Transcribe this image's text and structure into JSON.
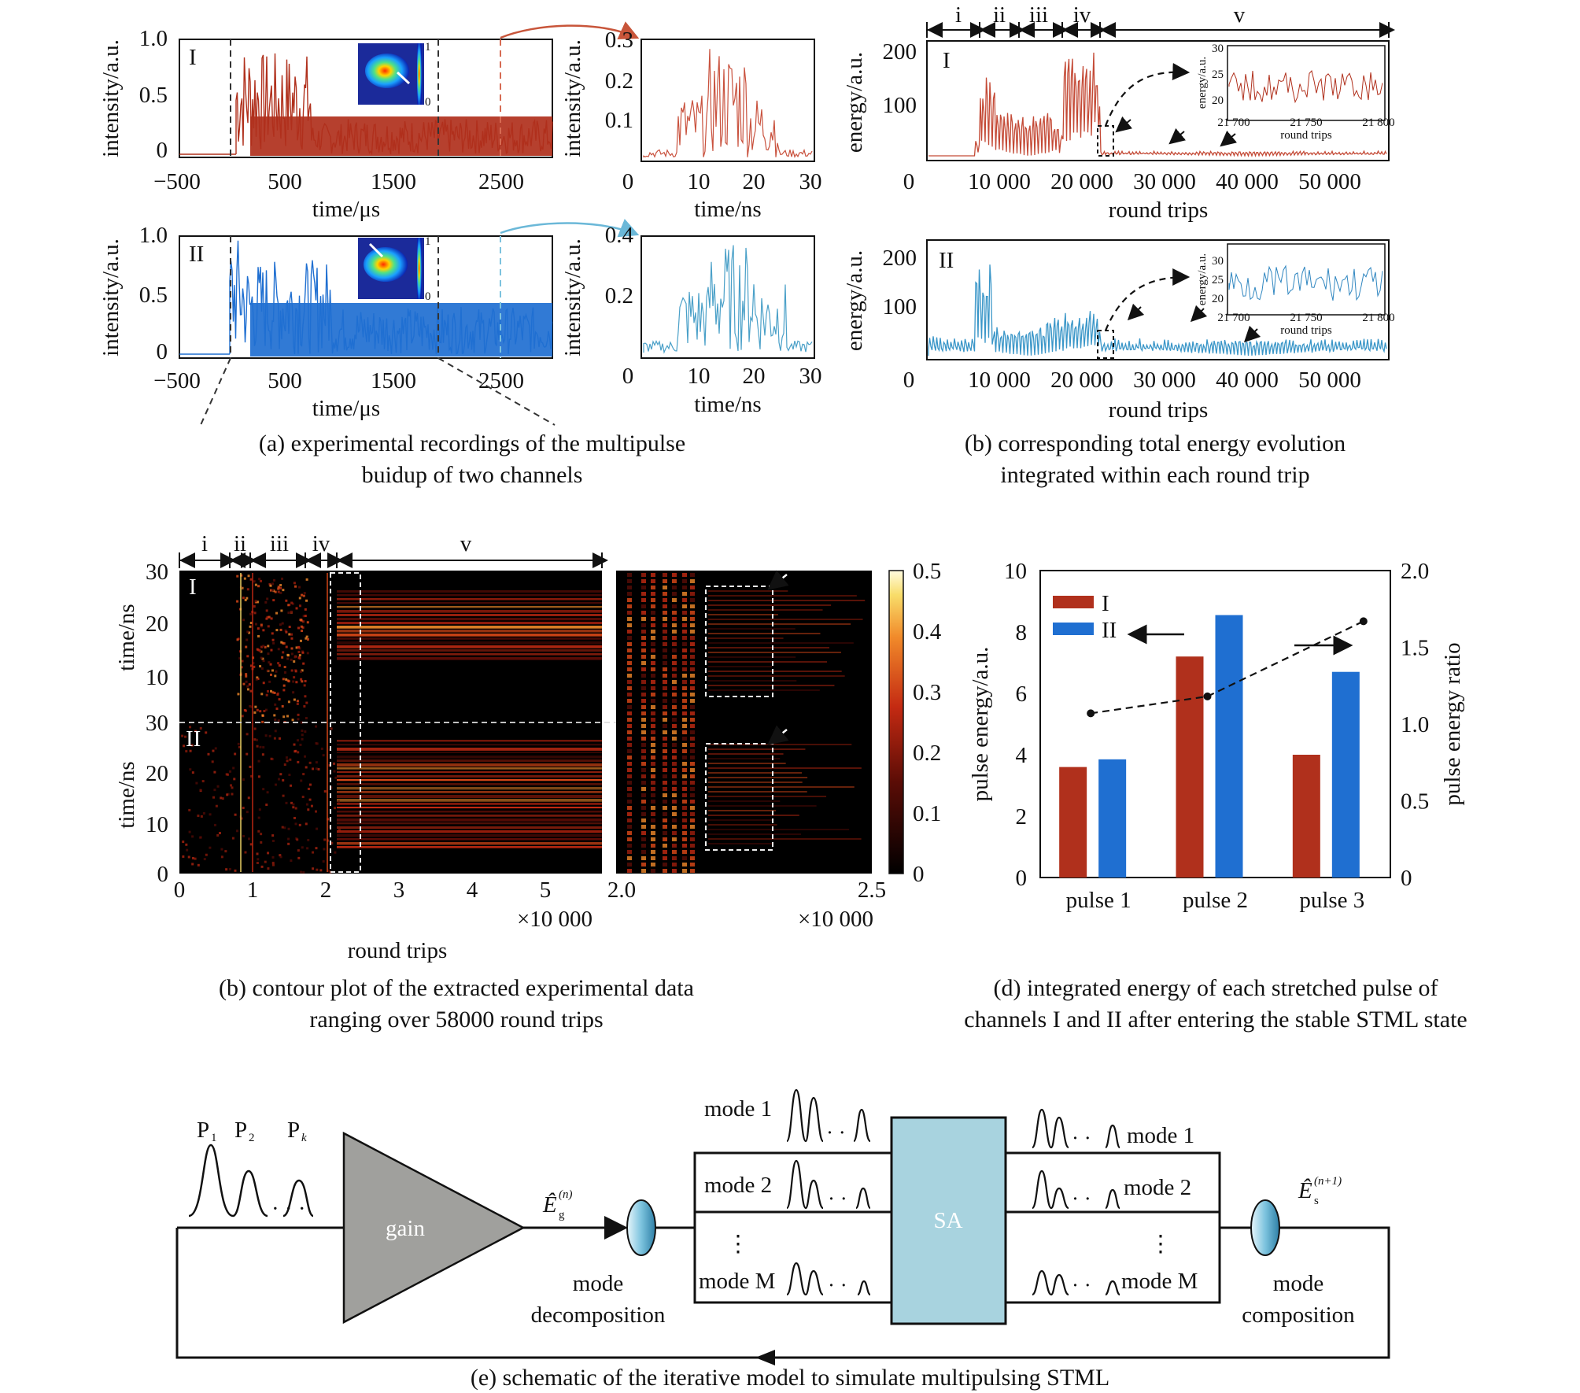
{
  "captions": {
    "a": [
      "(a) experimental recordings of the multipulse",
      "buidup of two channels"
    ],
    "b_top": [
      "(b) corresponding total energy evolution",
      "integrated within each round trip"
    ],
    "b_contour": [
      "(b) contour plot of the extracted experimental data",
      "ranging over 58000 round trips"
    ],
    "d": [
      "(d) integrated energy of each stretched pulse of",
      "channels I and II after entering the stable STML state"
    ],
    "e": "(e) schematic of the iterative model to simulate multipulsing STML"
  },
  "panel_a": {
    "channels": [
      "I",
      "II"
    ],
    "ylabel": "intensity/a.u.",
    "xlabel": "time/μs",
    "xticks": [
      "−500",
      "500",
      "1500",
      "2500"
    ],
    "yticks_main": [
      "0",
      "0.5",
      "1.0"
    ],
    "zoom_xlabel": "time/ns",
    "zoom_xticks": [
      "0",
      "10",
      "20",
      "30"
    ],
    "zoom_yticks_I": [
      "0.1",
      "0.2",
      "0.3"
    ],
    "zoom_yticks_II": [
      "0.2",
      "0.4"
    ],
    "inset_ticks": [
      "1",
      "0"
    ]
  },
  "panel_b": {
    "channels": [
      "I",
      "II"
    ],
    "ylabel": "energy/a.u.",
    "xlabel": "round trips",
    "xticks": [
      "0",
      "10 000",
      "20 000",
      "30 000",
      "40 000",
      "50 000"
    ],
    "yticks": [
      "100",
      "200"
    ],
    "stages": [
      "i",
      "ii",
      "iii",
      "iv",
      "v"
    ],
    "inset": {
      "ylabel": "energy/a.u.",
      "xlabel": "round trips",
      "xticks": [
        "21 700",
        "21 750",
        "21 800"
      ],
      "yticks": [
        "20",
        "25",
        "30"
      ]
    }
  },
  "panel_c": {
    "channels": [
      "I",
      "II"
    ],
    "ylabel": "time/ns",
    "yticks_I": [
      "10",
      "20",
      "30"
    ],
    "yticks_II": [
      "0",
      "10",
      "20",
      "30"
    ],
    "xticks": [
      "0",
      "1",
      "2",
      "3",
      "4",
      "5"
    ],
    "x_multiplier": "×10 000",
    "xlabel": "round trips",
    "stages": [
      "i",
      "ii",
      "iii",
      "iv",
      "v"
    ],
    "zoom_xticks": [
      "2.0",
      "2.5"
    ],
    "zoom_multiplier": "×10 000",
    "colorbar_ticks": [
      "0",
      "0.1",
      "0.2",
      "0.3",
      "0.4",
      "0.5"
    ]
  },
  "chart_data": {
    "type": "bar",
    "title": "",
    "categories": [
      "pulse 1",
      "pulse 2",
      "pulse 3"
    ],
    "series": [
      {
        "name": "I",
        "values": [
          3.6,
          7.2,
          4.0
        ],
        "color": "#b0301c"
      },
      {
        "name": "II",
        "values": [
          3.85,
          8.55,
          6.7
        ],
        "color": "#1f6fd1"
      }
    ],
    "ratio": {
      "values": [
        1.07,
        1.18,
        1.67
      ],
      "axis": "right"
    },
    "ylabel": "pulse energy/a.u.",
    "y2label": "pulse energy ratio",
    "ylim": [
      0,
      10
    ],
    "y2lim": [
      0,
      2.0
    ],
    "yticks": [
      "0",
      "2",
      "4",
      "6",
      "8",
      "10"
    ],
    "y2ticks": [
      "0",
      "0.5",
      "1.0",
      "1.5",
      "2.0"
    ],
    "legend": "top-left"
  },
  "panel_e": {
    "pulses": [
      "P",
      "P",
      "P"
    ],
    "pulse_subs": [
      "1",
      "2",
      "k"
    ],
    "gain": "gain",
    "sa": "SA",
    "eg": "Ê",
    "eg_sub": "g",
    "eg_sup": "(n)",
    "es": "Ê",
    "es_sub": "s",
    "es_sup": "(n+1)",
    "decomp": [
      "mode",
      "decomposition"
    ],
    "comp": [
      "mode",
      "composition"
    ],
    "modes_left": [
      "mode 1",
      "mode 2",
      "mode M"
    ],
    "modes_right": [
      "mode 1",
      "mode 2",
      "mode M"
    ]
  },
  "colors": {
    "red": "#b0301c",
    "blue": "#1f6fd1",
    "sa_box": "#a8d3df",
    "gain": "#a0a09d"
  }
}
